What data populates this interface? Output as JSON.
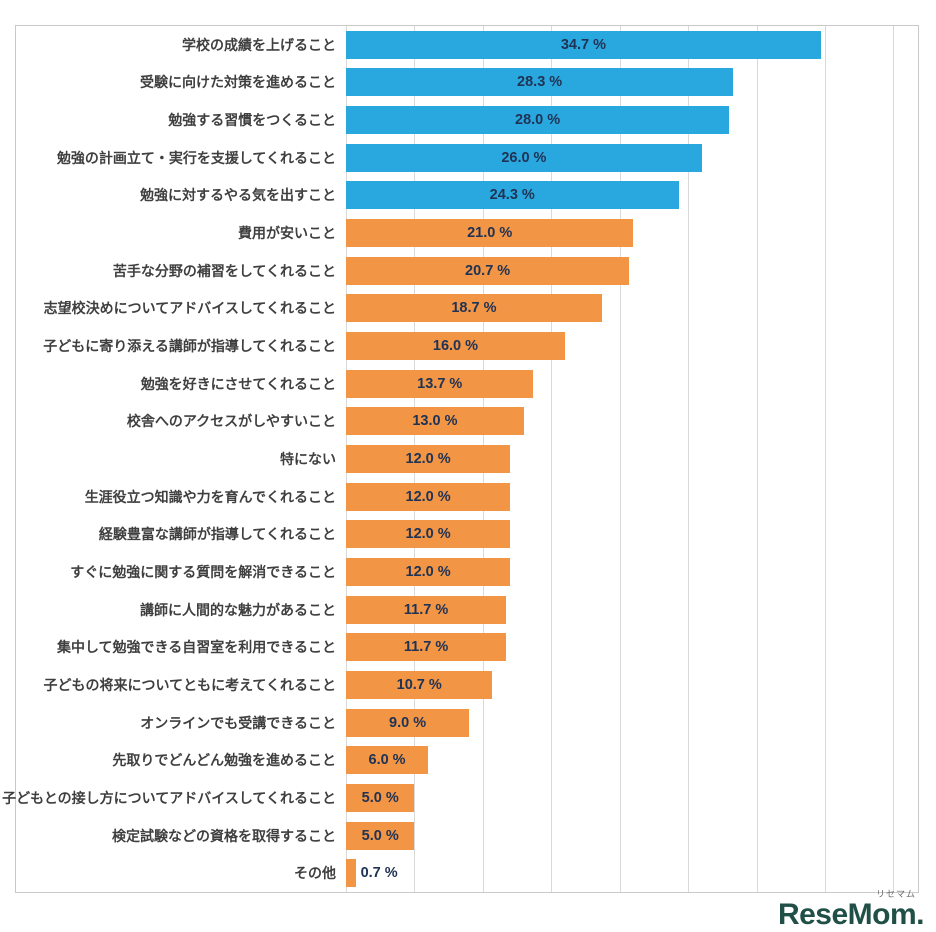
{
  "chart_data": {
    "type": "bar",
    "orientation": "horizontal",
    "title": "",
    "xlabel": "",
    "ylabel": "",
    "categories": [
      "学校の成績を上げること",
      "受験に向けた対策を進めること",
      "勉強する習慣をつくること",
      "勉強の計画立て・実行を支援してくれること",
      "勉強に対するやる気を出すこと",
      "費用が安いこと",
      "苦手な分野の補習をしてくれること",
      "志望校決めについてアドバイスしてくれること",
      "子どもに寄り添える講師が指導してくれること",
      "勉強を好きにさせてくれること",
      "校舎へのアクセスがしやすいこと",
      "特にない",
      "生涯役立つ知識や力を育んでくれること",
      "経験豊富な講師が指導してくれること",
      "すぐに勉強に関する質問を解消できること",
      "講師に人間的な魅力があること",
      "集中して勉強できる自習室を利用できること",
      "子どもの将来についてともに考えてくれること",
      "オンラインでも受講できること",
      "先取りでどんどん勉強を進めること",
      "子どもとの接し方についてアドバイスしてくれること",
      "検定試験などの資格を取得すること",
      "その他"
    ],
    "values": [
      34.7,
      28.3,
      28.0,
      26.0,
      24.3,
      21.0,
      20.7,
      18.7,
      16.0,
      13.7,
      13.0,
      12.0,
      12.0,
      12.0,
      12.0,
      11.7,
      11.7,
      10.7,
      9.0,
      6.0,
      5.0,
      5.0,
      0.7
    ],
    "value_labels": [
      "34.7 %",
      "28.3 %",
      "28.0 %",
      "26.0 %",
      "24.3 %",
      "21.0 %",
      "20.7 %",
      "18.7 %",
      "16.0 %",
      "13.7 %",
      "13.0 %",
      "12.0 %",
      "12.0 %",
      "12.0 %",
      "12.0 %",
      "11.7 %",
      "11.7 %",
      "10.7 %",
      "9.0 %",
      "6.0 %",
      "5.0 %",
      "5.0 %",
      "0.7 %"
    ],
    "highlight_count": 5,
    "colors": {
      "highlight": "#29a8e0",
      "default": "#f29544",
      "gridline": "#d9d9d9",
      "value_text": "#203354",
      "category_text": "#3f3f3f",
      "frame_border": "#c9c9c9"
    },
    "axis": {
      "min": 0,
      "max": 40,
      "step": 5,
      "display_max": 41.8,
      "grid": true,
      "tick_labels_visible": false
    },
    "legend": "none"
  },
  "logo": {
    "text": "ReseMom",
    "dot": ".",
    "ruby": "リセマム",
    "color": "#1f4f46"
  }
}
